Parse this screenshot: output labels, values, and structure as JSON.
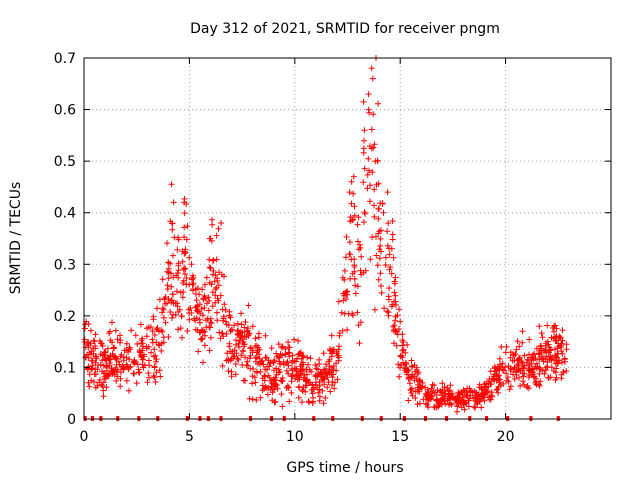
{
  "chart_data": {
    "type": "scatter",
    "title": "Day 312 of 2021, SRMTID for receiver pngm",
    "xlabel": "GPS time / hours",
    "ylabel": "SRMTID / TECUs",
    "xlim": [
      0,
      25
    ],
    "ylim": [
      0,
      0.7
    ],
    "grid": true,
    "marker": "+",
    "color": "#ff0000",
    "x_ticks": [
      0,
      5,
      10,
      15,
      20
    ],
    "y_ticks": [
      0,
      0.1,
      0.2,
      0.3,
      0.4,
      0.5,
      0.6,
      0.7
    ],
    "x_tick_labels": [
      "0",
      "5",
      "10",
      "15",
      "20"
    ],
    "y_tick_labels": [
      "0",
      "0.1",
      "0.2",
      "0.3",
      "0.4",
      "0.5",
      "0.6",
      "0.7"
    ],
    "envelope": [
      [
        0.0,
        0.15,
        0.06
      ],
      [
        0.5,
        0.11,
        0.05
      ],
      [
        1.0,
        0.1,
        0.05
      ],
      [
        1.5,
        0.12,
        0.05
      ],
      [
        2.0,
        0.11,
        0.05
      ],
      [
        2.5,
        0.13,
        0.05
      ],
      [
        3.0,
        0.12,
        0.06
      ],
      [
        3.5,
        0.15,
        0.07
      ],
      [
        4.0,
        0.24,
        0.08
      ],
      [
        4.3,
        0.3,
        0.12
      ],
      [
        4.6,
        0.26,
        0.1
      ],
      [
        4.8,
        0.3,
        0.11
      ],
      [
        5.0,
        0.24,
        0.09
      ],
      [
        5.3,
        0.22,
        0.07
      ],
      [
        5.6,
        0.18,
        0.06
      ],
      [
        6.0,
        0.25,
        0.1
      ],
      [
        6.3,
        0.28,
        0.09
      ],
      [
        6.6,
        0.18,
        0.08
      ],
      [
        7.0,
        0.14,
        0.06
      ],
      [
        7.5,
        0.16,
        0.06
      ],
      [
        8.0,
        0.12,
        0.06
      ],
      [
        8.5,
        0.1,
        0.05
      ],
      [
        9.0,
        0.09,
        0.05
      ],
      [
        9.5,
        0.1,
        0.05
      ],
      [
        10.0,
        0.1,
        0.05
      ],
      [
        10.5,
        0.08,
        0.04
      ],
      [
        11.0,
        0.07,
        0.04
      ],
      [
        11.5,
        0.08,
        0.04
      ],
      [
        12.0,
        0.12,
        0.06
      ],
      [
        12.3,
        0.25,
        0.1
      ],
      [
        12.7,
        0.32,
        0.12
      ],
      [
        13.0,
        0.28,
        0.12
      ],
      [
        13.3,
        0.4,
        0.18
      ],
      [
        13.6,
        0.5,
        0.2
      ],
      [
        13.9,
        0.45,
        0.2
      ],
      [
        14.2,
        0.32,
        0.15
      ],
      [
        14.6,
        0.26,
        0.12
      ],
      [
        15.0,
        0.14,
        0.06
      ],
      [
        15.5,
        0.08,
        0.04
      ],
      [
        16.0,
        0.05,
        0.025
      ],
      [
        16.5,
        0.04,
        0.02
      ],
      [
        17.0,
        0.04,
        0.02
      ],
      [
        17.5,
        0.04,
        0.02
      ],
      [
        18.0,
        0.04,
        0.02
      ],
      [
        18.5,
        0.04,
        0.02
      ],
      [
        19.0,
        0.05,
        0.025
      ],
      [
        19.5,
        0.08,
        0.03
      ],
      [
        20.0,
        0.1,
        0.04
      ],
      [
        20.5,
        0.11,
        0.04
      ],
      [
        21.0,
        0.1,
        0.04
      ],
      [
        21.5,
        0.11,
        0.05
      ],
      [
        22.0,
        0.12,
        0.05
      ],
      [
        22.5,
        0.13,
        0.05
      ],
      [
        22.9,
        0.12,
        0.05
      ]
    ],
    "peaks": [
      [
        4.15,
        0.455
      ],
      [
        4.25,
        0.42
      ],
      [
        4.75,
        0.42
      ],
      [
        5.1,
        0.3
      ],
      [
        6.0,
        0.35
      ],
      [
        6.5,
        0.38
      ],
      [
        7.8,
        0.22
      ],
      [
        12.6,
        0.44
      ],
      [
        12.8,
        0.47
      ],
      [
        13.3,
        0.56
      ],
      [
        13.5,
        0.63
      ],
      [
        13.65,
        0.68
      ],
      [
        13.7,
        0.66
      ],
      [
        13.85,
        0.7
      ],
      [
        13.5,
        0.6
      ],
      [
        14.4,
        0.44
      ],
      [
        14.6,
        0.33
      ],
      [
        21.6,
        0.18
      ],
      [
        22.3,
        0.18
      ],
      [
        22.0,
        0.15
      ],
      [
        20.8,
        0.17
      ]
    ],
    "gap_markers": [
      0.05,
      0.4,
      0.8,
      1.6,
      2.6,
      3.5,
      4.9,
      5.5,
      5.9,
      6.5,
      7.9,
      8.9,
      9.5,
      10.9,
      11.8,
      13.2,
      14.1,
      15.2,
      16.2,
      17.2,
      18.3,
      19.1,
      20.1,
      21.2,
      22.5
    ]
  }
}
